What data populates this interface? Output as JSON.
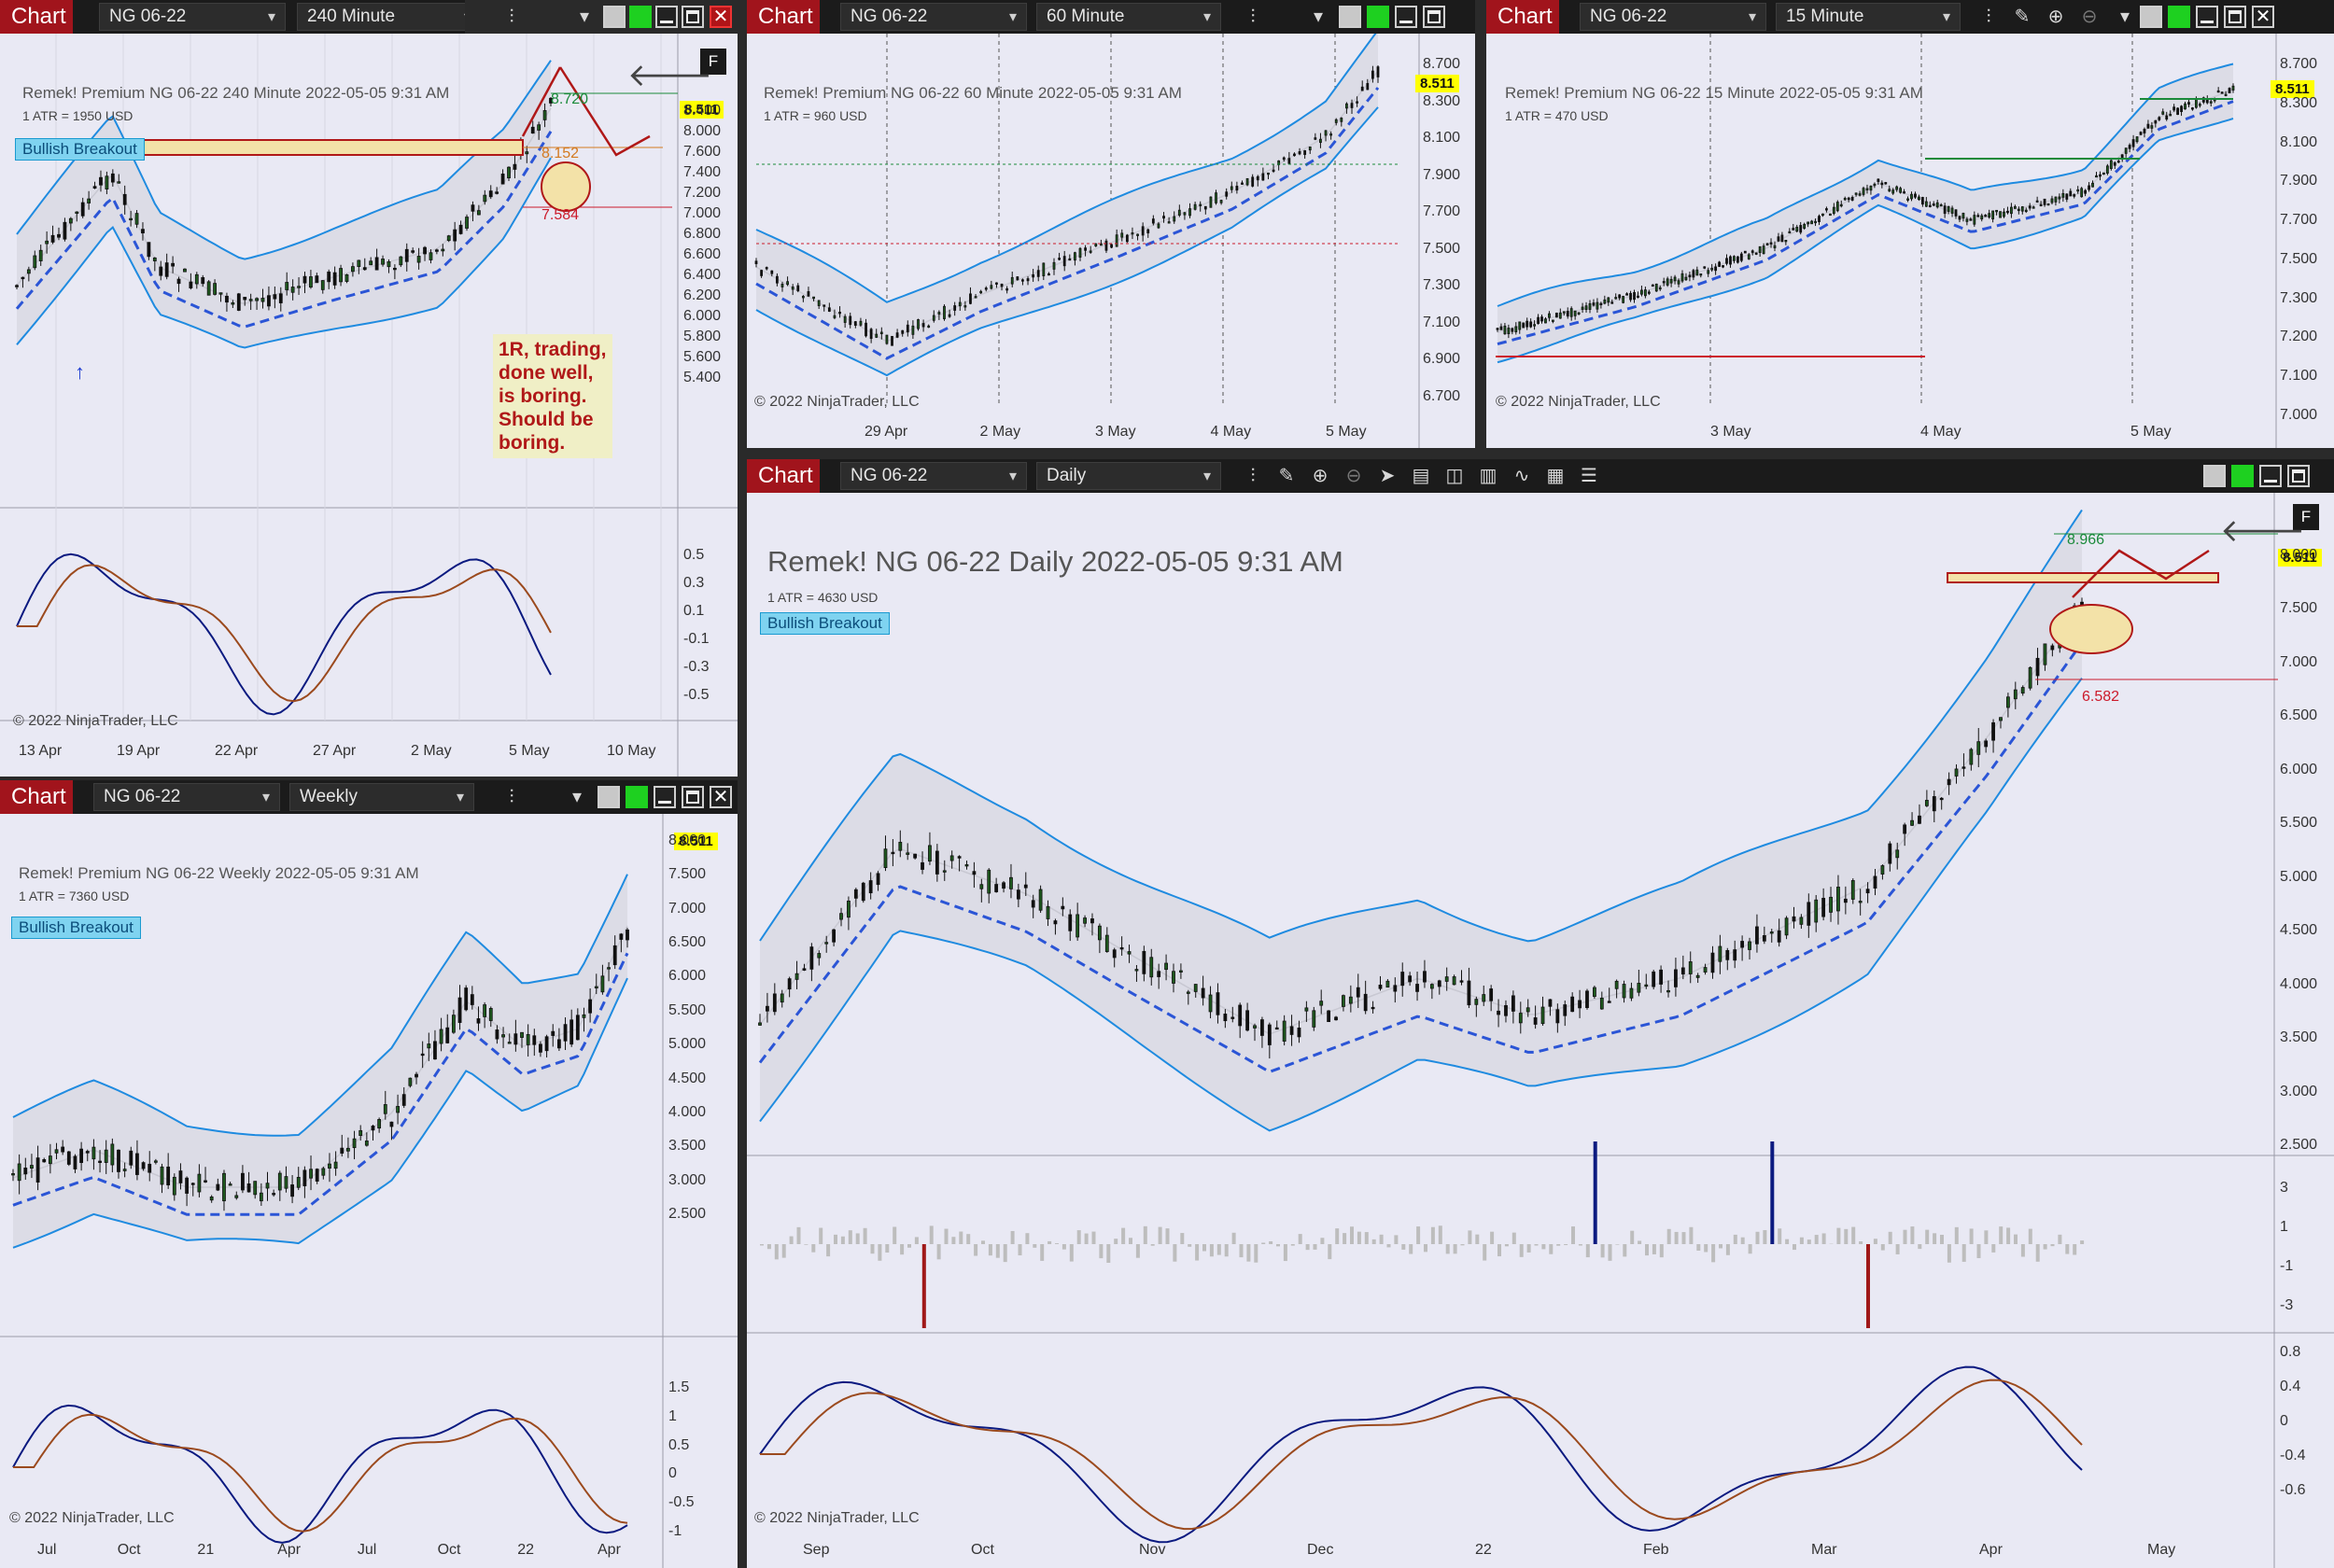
{
  "common": {
    "chart_label": "Chart",
    "instrument": "NG 06-22",
    "price": "8.511",
    "copyright": "© 2022 NinjaTrader, LLC",
    "badge": "Bullish Breakout"
  },
  "w240": {
    "timeframe": "240 Minute",
    "header": "Remek!  Premium  NG 06-22  240 Minute  2022-05-05 9:31 AM",
    "atr": "1 ATR = 1950 USD",
    "yticks": [
      "8.400",
      "8.000",
      "7.600",
      "7.400",
      "7.200",
      "7.000",
      "6.800",
      "6.600",
      "6.400",
      "6.200",
      "6.000",
      "5.800",
      "5.600",
      "5.400"
    ],
    "osc_ticks": [
      "0.5",
      "0.3",
      "0.1",
      "-0.1",
      "-0.3",
      "-0.5"
    ],
    "xticks": [
      "13 Apr",
      "19 Apr",
      "22 Apr",
      "27 Apr",
      "2 May",
      "5 May",
      "10 May"
    ],
    "label_high": "8.720",
    "label_mid": "8.152",
    "label_low": "7.584",
    "note": [
      "1R, trading,",
      "done well,",
      "is boring.",
      "Should be",
      "boring."
    ]
  },
  "w60": {
    "timeframe": "60 Minute",
    "header": "Remek!  Premium  NG 06-22  60 Minute  2022-05-05 9:31 AM",
    "atr": "1 ATR = 960 USD",
    "yticks": [
      "8.700",
      "8.300",
      "8.100",
      "7.900",
      "7.700",
      "7.500",
      "7.300",
      "7.100",
      "6.900",
      "6.700"
    ],
    "xticks": [
      "29 Apr",
      "2 May",
      "3 May",
      "4 May",
      "5 May"
    ]
  },
  "w15": {
    "timeframe": "15 Minute",
    "header": "Remek!  Premium  NG 06-22  15 Minute  2022-05-05 9:31 AM",
    "atr": "1 ATR = 470 USD",
    "yticks": [
      "8.700",
      "8.300",
      "8.100",
      "7.900",
      "7.700",
      "7.500",
      "7.300",
      "7.200",
      "7.100",
      "7.000"
    ],
    "xticks": [
      "3 May",
      "4 May",
      "5 May"
    ]
  },
  "wweekly": {
    "timeframe": "Weekly",
    "header": "Remek!  Premium  NG 06-22  Weekly  2022-05-05 9:31 AM",
    "atr": "1 ATR = 7360 USD",
    "yticks": [
      "8.000",
      "7.500",
      "7.000",
      "6.500",
      "6.000",
      "5.500",
      "5.000",
      "4.500",
      "4.000",
      "3.500",
      "3.000",
      "2.500"
    ],
    "osc_ticks": [
      "1.5",
      "1",
      "0.5",
      "0",
      "-0.5",
      "-1"
    ],
    "xticks": [
      "Jul",
      "Oct",
      "21",
      "Apr",
      "Jul",
      "Oct",
      "22",
      "Apr"
    ]
  },
  "wdaily": {
    "timeframe": "Daily",
    "header": "Remek!  NG 06-22  Daily  2022-05-05 9:31 AM",
    "atr": "1 ATR = 4630 USD",
    "yticks": [
      "8.000",
      "7.500",
      "7.000",
      "6.500",
      "6.000",
      "5.500",
      "5.000",
      "4.500",
      "4.000",
      "3.500",
      "3.000",
      "2.500"
    ],
    "hist_ticks": [
      "3",
      "1",
      "-1",
      "-3"
    ],
    "osc_ticks": [
      "0.8",
      "0.4",
      "0",
      "-0.4",
      "-0.6"
    ],
    "xticks": [
      "Sep",
      "Oct",
      "Nov",
      "Dec",
      "22",
      "Feb",
      "Mar",
      "Apr",
      "May"
    ],
    "label_high": "8.966",
    "label_low": "6.582"
  },
  "colors": {
    "chart_red": "#a1141c",
    "price_yellow": "#ffff00",
    "band_blue": "#1f8be0",
    "signal_red": "#d4142a",
    "fill_gray": "#dcdce6"
  },
  "icons": [
    "bar-chart-icon",
    "pencil-draw-icon",
    "zoom-in-icon",
    "zoom-out-icon",
    "cursor-icon",
    "data-box-icon",
    "template-icon",
    "indicators-icon",
    "strategy-icon",
    "calculator-icon",
    "properties-icon"
  ]
}
